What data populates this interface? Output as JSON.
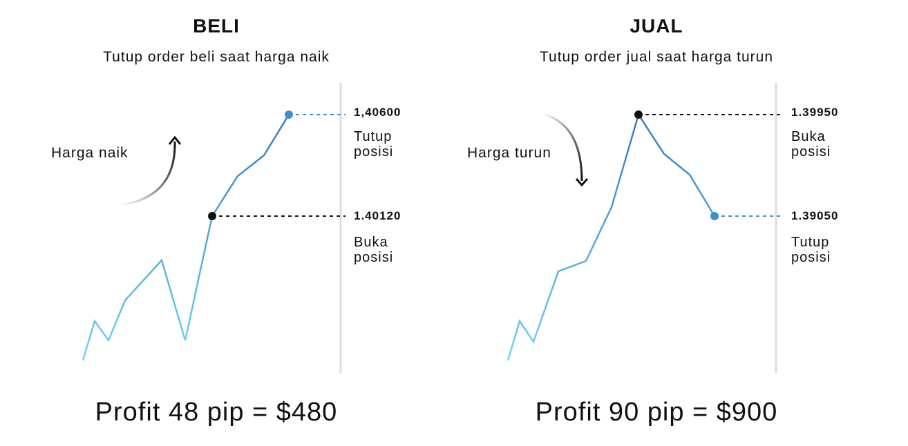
{
  "panels": [
    {
      "title": "BELI",
      "subtitle": "Tutup order beli saat harga naik",
      "direction": "Harga naik",
      "upper_price": "1,40600",
      "upper_label": "Tutup posisi",
      "lower_price": "1.40120",
      "lower_label": "Buka posisi",
      "profit": "Profit 48 pip = $480"
    },
    {
      "title": "JUAL",
      "subtitle": "Tutup order jual saat harga turun",
      "direction": "Harga turun",
      "upper_price": "1.39950",
      "upper_label": "Buka posisi",
      "lower_price": "1.39050",
      "lower_label": "Tutup posisi",
      "profit": "Profit 90 pip = $900"
    }
  ]
}
